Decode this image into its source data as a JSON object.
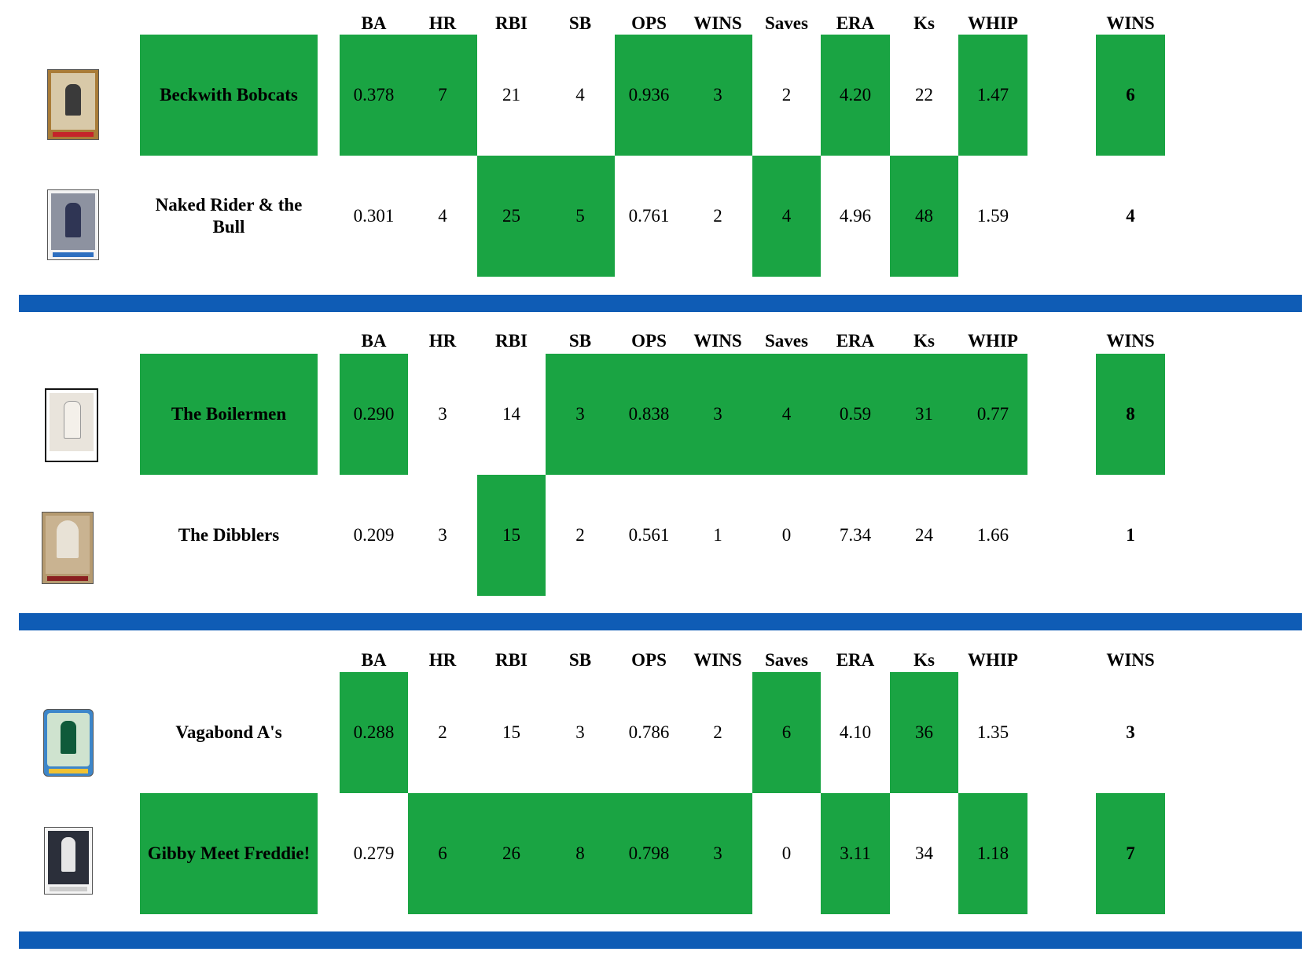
{
  "columns": [
    "BA",
    "HR",
    "RBI",
    "SB",
    "OPS",
    "WINS",
    "Saves",
    "ERA",
    "Ks",
    "WHIP"
  ],
  "total_label": "WINS",
  "colors": {
    "winner_fill": "#1aa443",
    "divider": "#0f5cb5"
  },
  "matchups": [
    {
      "teams": [
        {
          "name": "Beckwith Bobcats",
          "icon": "baseball-card-pitcher-icon",
          "stats": [
            "0.378",
            "7",
            "21",
            "4",
            "0.936",
            "3",
            "2",
            "4.20",
            "22",
            "1.47"
          ],
          "total": "6"
        },
        {
          "name": "Naked Rider & the Bull",
          "icon": "baseball-card-batter-icon",
          "stats": [
            "0.301",
            "4",
            "25",
            "5",
            "0.761",
            "2",
            "4",
            "4.96",
            "48",
            "1.59"
          ],
          "total": "4"
        }
      ]
    },
    {
      "teams": [
        {
          "name": "The Boilermen",
          "icon": "baseball-card-player-icon",
          "stats": [
            "0.290",
            "3",
            "14",
            "3",
            "0.838",
            "3",
            "4",
            "0.59",
            "31",
            "0.77"
          ],
          "total": "8"
        },
        {
          "name": "The Dibblers",
          "icon": "baseball-card-player-icon",
          "stats": [
            "0.209",
            "3",
            "15",
            "2",
            "0.561",
            "1",
            "0",
            "7.34",
            "24",
            "1.66"
          ],
          "total": "1"
        }
      ]
    },
    {
      "teams": [
        {
          "name": "Vagabond A's",
          "icon": "baseball-card-player-icon",
          "stats": [
            "0.288",
            "2",
            "15",
            "3",
            "0.786",
            "2",
            "6",
            "4.10",
            "36",
            "1.35"
          ],
          "total": "3"
        },
        {
          "name": "Gibby Meet Freddie!",
          "icon": "baseball-card-batter-icon",
          "stats": [
            "0.279",
            "6",
            "26",
            "8",
            "0.798",
            "3",
            "0",
            "3.11",
            "34",
            "1.18"
          ],
          "total": "7"
        }
      ]
    }
  ]
}
